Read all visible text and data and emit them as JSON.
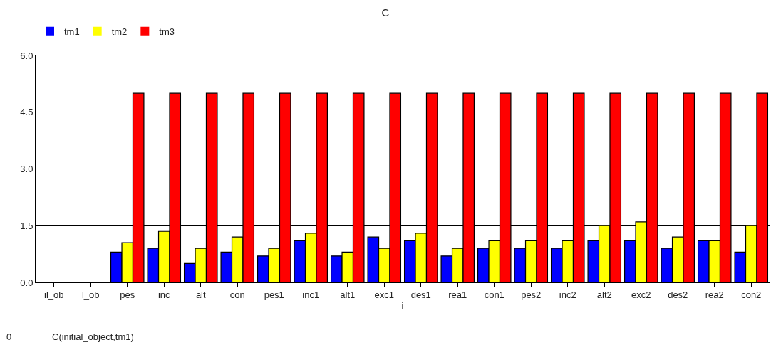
{
  "chart_data": {
    "type": "bar",
    "title": "C",
    "xlabel": "i",
    "categories": [
      "il_ob",
      "l_ob",
      "pes",
      "inc",
      "alt",
      "con",
      "pes1",
      "inc1",
      "alt1",
      "exc1",
      "des1",
      "rea1",
      "con1",
      "pes2",
      "inc2",
      "alt2",
      "exc2",
      "des2",
      "rea2",
      "con2"
    ],
    "series": [
      {
        "name": "tm1",
        "color": "#0000ff",
        "values": [
          0,
          0,
          0.8,
          0.9,
          0.5,
          0.8,
          0.7,
          1.1,
          0.7,
          1.2,
          1.1,
          0.7,
          0.9,
          0.9,
          0.9,
          1.1,
          1.1,
          0.9,
          1.1,
          0.8
        ]
      },
      {
        "name": "tm2",
        "color": "#ffff00",
        "values": [
          0,
          0,
          1.05,
          1.35,
          0.9,
          1.2,
          0.9,
          1.3,
          0.8,
          0.9,
          1.3,
          0.9,
          1.1,
          1.1,
          1.1,
          1.5,
          1.6,
          1.2,
          1.1,
          1.5
        ]
      },
      {
        "name": "tm3",
        "color": "#ff0000",
        "values": [
          0,
          0,
          5,
          5,
          5,
          5,
          5,
          5,
          5,
          5,
          5,
          5,
          5,
          5,
          5,
          5,
          5,
          5,
          5,
          5
        ]
      }
    ],
    "ylim": [
      0,
      6
    ],
    "yticks": [
      {
        "value": 0,
        "label": "0.0"
      },
      {
        "value": 1.5,
        "label": "1.5"
      },
      {
        "value": 3,
        "label": "3.0"
      },
      {
        "value": 4.5,
        "label": "4.5"
      },
      {
        "value": 6,
        "label": "6.0"
      }
    ],
    "grid": "y",
    "legend": "top left",
    "annotations": [
      "0",
      "C(initial_object,tm1)"
    ]
  }
}
